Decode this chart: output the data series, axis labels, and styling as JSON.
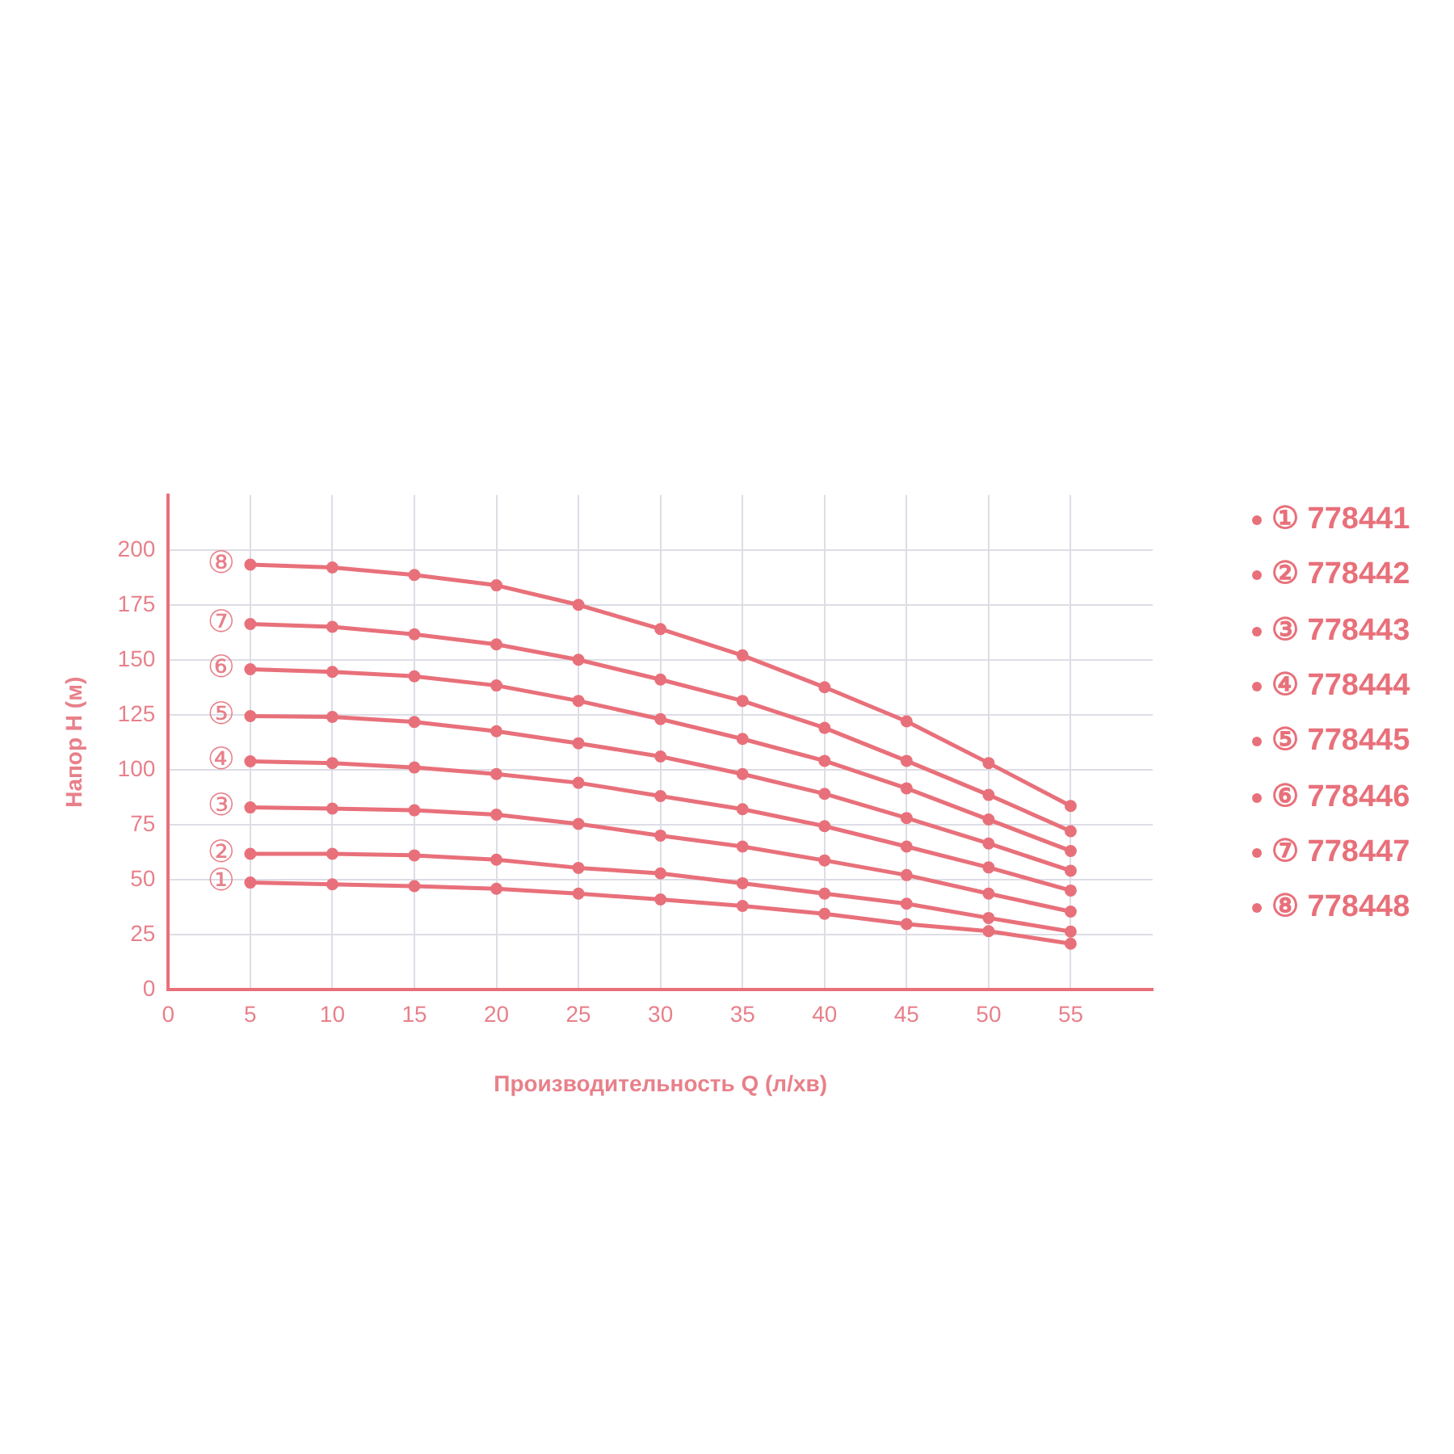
{
  "chart_data": {
    "type": "line",
    "xlabel": "Производительность Q (л/хв)",
    "ylabel": "Напор H (м)",
    "x": [
      5,
      10,
      15,
      20,
      25,
      30,
      35,
      40,
      45,
      50,
      55
    ],
    "xlim": [
      0,
      60
    ],
    "xticks": [
      0,
      5,
      10,
      15,
      20,
      25,
      30,
      35,
      40,
      45,
      50,
      55
    ],
    "ylim": [
      0,
      225
    ],
    "yticks": [
      0,
      25,
      50,
      75,
      100,
      125,
      150,
      175,
      200
    ],
    "grid": true,
    "legend": "right",
    "marker": "circle",
    "line_style": "solid",
    "series": [
      {
        "name": "① 778441",
        "color": "#e8707a",
        "values": [
          48.6,
          47.8,
          47,
          45.8,
          43.6,
          40.9,
          38,
          34.4,
          29.7,
          26.5,
          20.8
        ]
      },
      {
        "name": "② 778442",
        "color": "#e8707a",
        "values": [
          61.7,
          61.7,
          61,
          59,
          55.3,
          52.8,
          48.3,
          43.6,
          39,
          32.5,
          26.3
        ]
      },
      {
        "name": "③ 778443",
        "color": "#e8707a",
        "values": [
          82.8,
          82.3,
          81.5,
          79.5,
          75.3,
          70,
          65,
          58.7,
          52,
          43.6,
          35.4
        ]
      },
      {
        "name": "④ 778444",
        "color": "#e8707a",
        "values": [
          103.8,
          103,
          101,
          98,
          94,
          88,
          82,
          74.3,
          65,
          55.5,
          45
        ]
      },
      {
        "name": "⑤ 778445",
        "color": "#e8707a",
        "values": [
          124.4,
          124,
          121.7,
          117.5,
          112,
          106,
          98,
          89,
          78,
          66.4,
          54
        ]
      },
      {
        "name": "⑥ 778446",
        "color": "#e8707a",
        "values": [
          145.7,
          144.5,
          142.5,
          138.3,
          131.3,
          123,
          114,
          104,
          91.5,
          77.3,
          63
        ]
      },
      {
        "name": "⑦ 778447",
        "color": "#e8707a",
        "values": [
          166.3,
          165,
          161.6,
          157,
          150,
          141,
          131.3,
          119,
          104,
          88.5,
          72
        ]
      },
      {
        "name": "⑧ 778448",
        "color": "#e8707a",
        "values": [
          193.3,
          192,
          188.6,
          183.9,
          175,
          164,
          152,
          137.5,
          122,
          103,
          83.5
        ]
      }
    ],
    "annotations": [
      "①",
      "②",
      "③",
      "④",
      "⑤",
      "⑥",
      "⑦",
      "⑧"
    ]
  }
}
